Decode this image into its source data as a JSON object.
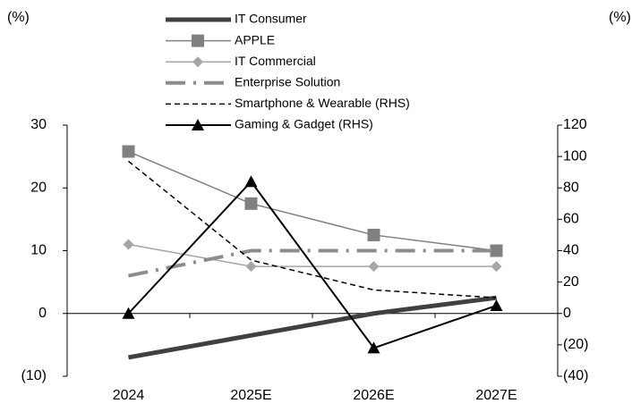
{
  "chart_data": {
    "type": "line",
    "y_label": "(%)",
    "y2_label": "(%)",
    "categories": [
      "2024",
      "2025E",
      "2026E",
      "2027E"
    ],
    "ylim": [
      -10,
      30
    ],
    "yticks": [
      {
        "value": -10,
        "label": "(10)"
      },
      0,
      10,
      20,
      30
    ],
    "y2lim": [
      -40,
      120
    ],
    "y2ticks": [
      {
        "value": -40,
        "label": "(40)"
      },
      {
        "value": -20,
        "label": "(20)"
      },
      0,
      20,
      40,
      60,
      80,
      100,
      120
    ],
    "series": [
      {
        "name": "IT Consumer",
        "color": "#404040",
        "width": 5,
        "dash": "solid",
        "marker": "none",
        "values": [
          -7,
          -3.5,
          0,
          2.5
        ]
      },
      {
        "name": "APPLE",
        "color": "#808080",
        "width": 1.5,
        "dash": "solid",
        "marker": "square",
        "values": [
          25.8,
          17.5,
          12.5,
          10
        ]
      },
      {
        "name": "IT Commercial",
        "color": "#a6a6a6",
        "width": 1.5,
        "dash": "solid",
        "marker": "diamond",
        "values": [
          11,
          7.5,
          7.5,
          7.5
        ]
      },
      {
        "name": "Enterprise Solution",
        "color": "#8c8c8c",
        "width": 4,
        "dash": "dashdot",
        "marker": "none",
        "values": [
          6,
          10,
          10,
          10
        ]
      },
      {
        "name": "Smartphone & Wearable (RHS)",
        "color": "#000000",
        "width": 1.5,
        "dash": "dashed",
        "marker": "none",
        "axis": "y2",
        "values": [
          97,
          34,
          15,
          10
        ]
      },
      {
        "name": "Gaming & Gadget (RHS)",
        "color": "#000000",
        "width": 2,
        "dash": "solid",
        "marker": "triangle",
        "axis": "y2",
        "values": [
          0,
          84,
          -22,
          5
        ]
      }
    ]
  }
}
